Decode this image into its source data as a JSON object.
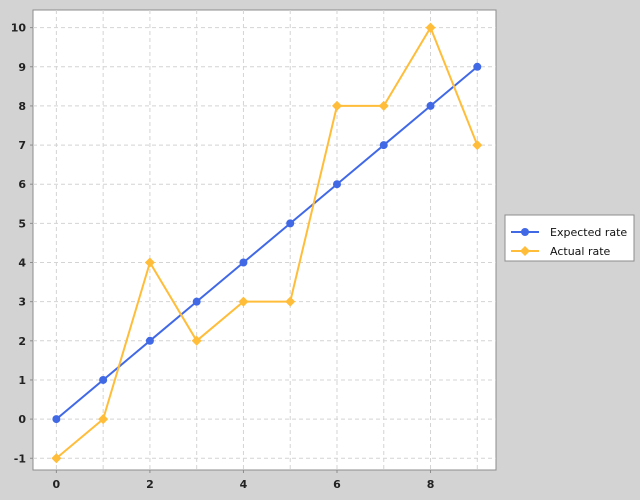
{
  "chart_data": {
    "type": "line",
    "title": "",
    "xlabel": "",
    "ylabel": "",
    "x": [
      0,
      1,
      2,
      3,
      4,
      5,
      6,
      7,
      8,
      9
    ],
    "xlim": [
      -0.5,
      9.4
    ],
    "ylim": [
      -1.3,
      10.45
    ],
    "xticks": [
      0,
      2,
      4,
      6,
      8
    ],
    "yticks": [
      -1,
      0,
      1,
      2,
      3,
      4,
      5,
      6,
      7,
      8,
      9,
      10
    ],
    "grid": true,
    "legend_position": "right",
    "series": [
      {
        "name": "Expected rate",
        "color": "#4169e6",
        "marker": "circle",
        "values": [
          0,
          1,
          2,
          3,
          4,
          5,
          6,
          7,
          8,
          9
        ]
      },
      {
        "name": "Actual rate",
        "color": "#ffbd3a",
        "marker": "diamond",
        "values": [
          -1,
          0,
          4,
          2,
          3,
          3,
          8,
          8,
          10,
          7
        ]
      }
    ]
  }
}
